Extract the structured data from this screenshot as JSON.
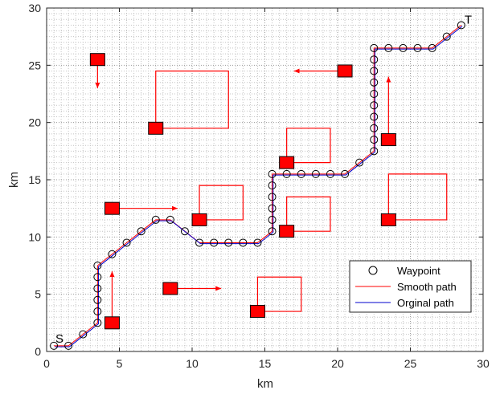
{
  "chart_data": {
    "type": "line",
    "title": "",
    "xlabel": "km",
    "ylabel": "km",
    "xlim": [
      0,
      30
    ],
    "ylim": [
      0,
      30
    ],
    "xticks": [
      0,
      5,
      10,
      15,
      20,
      25,
      30
    ],
    "yticks": [
      0,
      5,
      10,
      15,
      20,
      25,
      30
    ],
    "grid": "dotted minor grid every 0.5 km",
    "legend_position": "lower-right",
    "start_label": "S",
    "target_label": "T",
    "legend": [
      {
        "label": "Waypoint",
        "kind": "marker",
        "color": "#000000"
      },
      {
        "label": "Smooth path",
        "kind": "line",
        "color": "#ff0000"
      },
      {
        "label": "Orginal path",
        "kind": "line",
        "color": "#0000cc"
      }
    ],
    "series": [
      {
        "name": "Waypoint",
        "x": [
          0.5,
          1.5,
          2.5,
          3.5,
          3.5,
          3.5,
          3.5,
          3.5,
          3.5,
          4.5,
          5.5,
          6.5,
          7.5,
          8.5,
          9.5,
          10.5,
          11.5,
          12.5,
          13.5,
          14.5,
          15.5,
          15.5,
          15.5,
          15.5,
          15.5,
          15.5,
          16.5,
          17.5,
          18.5,
          19.5,
          20.5,
          21.5,
          22.5,
          22.5,
          22.5,
          22.5,
          22.5,
          22.5,
          22.5,
          22.5,
          22.5,
          22.5,
          23.5,
          24.5,
          25.5,
          26.5,
          27.5,
          28.5
        ],
        "y": [
          0.5,
          0.5,
          1.5,
          2.5,
          3.5,
          4.5,
          5.5,
          6.5,
          7.5,
          8.5,
          9.5,
          10.5,
          11.5,
          11.5,
          10.5,
          9.5,
          9.5,
          9.5,
          9.5,
          9.5,
          10.5,
          11.5,
          12.5,
          13.5,
          14.5,
          15.5,
          15.5,
          15.5,
          15.5,
          15.5,
          15.5,
          16.5,
          17.5,
          18.5,
          19.5,
          20.5,
          21.5,
          22.5,
          23.5,
          24.5,
          25.5,
          26.5,
          26.5,
          26.5,
          26.5,
          26.5,
          27.5,
          28.5
        ]
      },
      {
        "name": "Smooth path",
        "x": [
          0.5,
          1.5,
          2.5,
          3.5,
          3.5,
          3.5,
          3.5,
          3.5,
          3.5,
          4.5,
          5.5,
          6.5,
          7.5,
          8.5,
          9.5,
          10.5,
          11.5,
          12.5,
          13.5,
          14.5,
          15.5,
          15.5,
          15.5,
          15.5,
          15.5,
          15.5,
          16.5,
          17.5,
          18.5,
          19.5,
          20.5,
          21.5,
          22.5,
          22.5,
          22.5,
          22.5,
          22.5,
          22.5,
          22.5,
          22.5,
          22.5,
          22.5,
          23.5,
          24.5,
          25.5,
          26.5,
          27.5,
          28.5
        ],
        "y": [
          0.5,
          0.5,
          1.5,
          2.5,
          3.5,
          4.5,
          5.5,
          6.5,
          7.5,
          8.5,
          9.5,
          10.5,
          11.5,
          11.5,
          10.5,
          9.5,
          9.5,
          9.5,
          9.5,
          9.5,
          10.5,
          11.5,
          12.5,
          13.5,
          14.5,
          15.5,
          15.5,
          15.5,
          15.5,
          15.5,
          15.5,
          16.5,
          17.5,
          18.5,
          19.5,
          20.5,
          21.5,
          22.5,
          23.5,
          24.5,
          25.5,
          26.5,
          26.5,
          26.5,
          26.5,
          26.5,
          27.5,
          28.5
        ]
      },
      {
        "name": "Orginal path",
        "x": [
          0.5,
          1.5,
          2.5,
          3.5,
          3.5,
          3.5,
          3.5,
          3.5,
          3.5,
          4.5,
          5.5,
          6.5,
          7.5,
          8.5,
          9.5,
          10.5,
          11.5,
          12.5,
          13.5,
          14.5,
          15.5,
          15.5,
          15.5,
          15.5,
          15.5,
          15.5,
          16.5,
          17.5,
          18.5,
          19.5,
          20.5,
          21.5,
          22.5,
          22.5,
          22.5,
          22.5,
          22.5,
          22.5,
          22.5,
          22.5,
          22.5,
          22.5,
          23.5,
          24.5,
          25.5,
          26.5,
          27.5,
          28.5
        ],
        "y": [
          0.5,
          0.5,
          1.5,
          2.5,
          3.5,
          4.5,
          5.5,
          6.5,
          7.5,
          8.5,
          9.5,
          10.5,
          11.5,
          11.5,
          10.5,
          9.5,
          9.5,
          9.5,
          9.5,
          9.5,
          10.5,
          11.5,
          12.5,
          13.5,
          14.5,
          15.5,
          15.5,
          15.5,
          15.5,
          15.5,
          15.5,
          16.5,
          17.5,
          18.5,
          19.5,
          20.5,
          21.5,
          22.5,
          23.5,
          24.5,
          25.5,
          26.5,
          26.5,
          26.5,
          26.5,
          26.5,
          27.5,
          28.5
        ]
      }
    ],
    "obstacles": [
      {
        "x": 3.5,
        "y": 25.5,
        "trajectory": [
          [
            3.5,
            25.5
          ],
          [
            3.5,
            23.0
          ]
        ]
      },
      {
        "x": 7.5,
        "y": 19.5,
        "trajectory": [
          [
            7.5,
            19.5
          ],
          [
            12.5,
            19.5
          ],
          [
            12.5,
            24.5
          ],
          [
            7.5,
            24.5
          ],
          [
            7.5,
            19.5
          ]
        ]
      },
      {
        "x": 4.5,
        "y": 12.5,
        "trajectory": [
          [
            4.5,
            12.5
          ],
          [
            9.0,
            12.5
          ]
        ]
      },
      {
        "x": 10.5,
        "y": 11.5,
        "trajectory": [
          [
            10.5,
            11.5
          ],
          [
            13.5,
            11.5
          ],
          [
            13.5,
            14.5
          ],
          [
            10.5,
            14.5
          ],
          [
            10.5,
            11.5
          ]
        ]
      },
      {
        "x": 4.5,
        "y": 2.5,
        "trajectory": [
          [
            4.5,
            2.5
          ],
          [
            4.5,
            7.0
          ]
        ]
      },
      {
        "x": 8.5,
        "y": 5.5,
        "trajectory": [
          [
            8.5,
            5.5
          ],
          [
            12.0,
            5.5
          ]
        ]
      },
      {
        "x": 14.5,
        "y": 3.5,
        "trajectory": [
          [
            14.5,
            3.5
          ],
          [
            17.5,
            3.5
          ],
          [
            17.5,
            6.5
          ],
          [
            14.5,
            6.5
          ],
          [
            14.5,
            3.5
          ]
        ]
      },
      {
        "x": 16.5,
        "y": 10.5,
        "trajectory": [
          [
            16.5,
            10.5
          ],
          [
            19.5,
            10.5
          ],
          [
            19.5,
            13.5
          ],
          [
            16.5,
            13.5
          ],
          [
            16.5,
            10.5
          ]
        ]
      },
      {
        "x": 16.5,
        "y": 16.5,
        "trajectory": [
          [
            16.5,
            16.5
          ],
          [
            19.5,
            16.5
          ],
          [
            19.5,
            19.5
          ],
          [
            16.5,
            19.5
          ],
          [
            16.5,
            16.5
          ]
        ]
      },
      {
        "x": 20.5,
        "y": 24.5,
        "trajectory": [
          [
            20.5,
            24.5
          ],
          [
            17.0,
            24.5
          ]
        ]
      },
      {
        "x": 23.5,
        "y": 18.5,
        "trajectory": [
          [
            23.5,
            18.5
          ],
          [
            23.5,
            24.0
          ]
        ]
      },
      {
        "x": 23.5,
        "y": 11.5,
        "trajectory": [
          [
            23.5,
            11.5
          ],
          [
            27.5,
            11.5
          ],
          [
            27.5,
            15.5
          ],
          [
            23.5,
            15.5
          ],
          [
            23.5,
            11.5
          ]
        ]
      }
    ]
  }
}
